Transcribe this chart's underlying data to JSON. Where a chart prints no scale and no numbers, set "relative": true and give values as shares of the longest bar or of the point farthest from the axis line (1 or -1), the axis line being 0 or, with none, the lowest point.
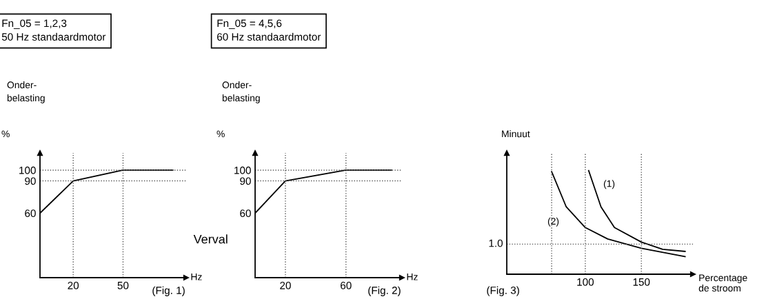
{
  "chart_data": [
    {
      "type": "line",
      "title": "Fn_05 = 1,2,3\n50 Hz standaardmotor",
      "subtitle": "Onder-\nbelasting",
      "ylabel": "%",
      "xlabel": "Hz",
      "annotations": [
        "Verval",
        "(Fig. 1)"
      ],
      "x": [
        0,
        20,
        50,
        80
      ],
      "series": [
        {
          "color": "#000000",
          "values": [
            60,
            90,
            100,
            100
          ]
        }
      ],
      "xlim": [
        0,
        88
      ],
      "xticks": [
        20,
        50
      ],
      "ylim": [
        0,
        116
      ],
      "yticks": [
        60,
        90,
        100
      ],
      "ref_lines": [
        {
          "axis": "x",
          "value": 20,
          "line_style": "dotted"
        },
        {
          "axis": "x",
          "value": 50,
          "line_style": "dotted"
        },
        {
          "axis": "y",
          "value": 90,
          "line_style": "dotted"
        },
        {
          "axis": "y",
          "value": 100,
          "line_style": "dotted"
        }
      ],
      "grid": false
    },
    {
      "type": "line",
      "title": "Fn_05 = 4,5,6\n60 Hz standaardmotor",
      "subtitle": "Onder-\nbelasting",
      "ylabel": "%",
      "xlabel": "Hz",
      "annotations": [
        "(Fig. 2)"
      ],
      "x": [
        0,
        20,
        60,
        90
      ],
      "series": [
        {
          "color": "#000000",
          "values": [
            60,
            90,
            100,
            100
          ]
        }
      ],
      "xlim": [
        0,
        97
      ],
      "xticks": [
        20,
        60
      ],
      "ylim": [
        0,
        116
      ],
      "yticks": [
        60,
        90,
        100
      ],
      "ref_lines": [
        {
          "axis": "x",
          "value": 20,
          "line_style": "dotted"
        },
        {
          "axis": "x",
          "value": 60,
          "line_style": "dotted"
        },
        {
          "axis": "y",
          "value": 90,
          "line_style": "dotted"
        },
        {
          "axis": "y",
          "value": 100,
          "line_style": "dotted"
        }
      ],
      "grid": false
    },
    {
      "type": "line",
      "ylabel": "Minuut",
      "xlabel": "Percentage\nde stroom",
      "relative": true,
      "annotations": [
        "1.0",
        "(1)",
        "(2)",
        "(Fig. 3)"
      ],
      "series": [
        {
          "color": "#000000",
          "x": [
            103,
            114,
            126,
            150,
            169,
            189
          ],
          "values": [
            1.0,
            0.65,
            0.45,
            0.31,
            0.24,
            0.22
          ]
        },
        {
          "color": "#000000",
          "x": [
            70,
            83,
            100,
            120,
            150,
            189
          ],
          "values": [
            0.99,
            0.65,
            0.45,
            0.34,
            0.25,
            0.17
          ]
        }
      ],
      "xlim": [
        30,
        196
      ],
      "xticks": [
        100,
        150
      ],
      "ref_lines": [
        {
          "axis": "x",
          "value": 70,
          "line_style": "dotted"
        },
        {
          "axis": "x",
          "value": 100,
          "line_style": "dotted"
        },
        {
          "axis": "x",
          "value": 150,
          "line_style": "dotted"
        },
        {
          "axis": "y",
          "value": 0.29,
          "line_style": "dotted"
        }
      ],
      "grid": false
    }
  ]
}
